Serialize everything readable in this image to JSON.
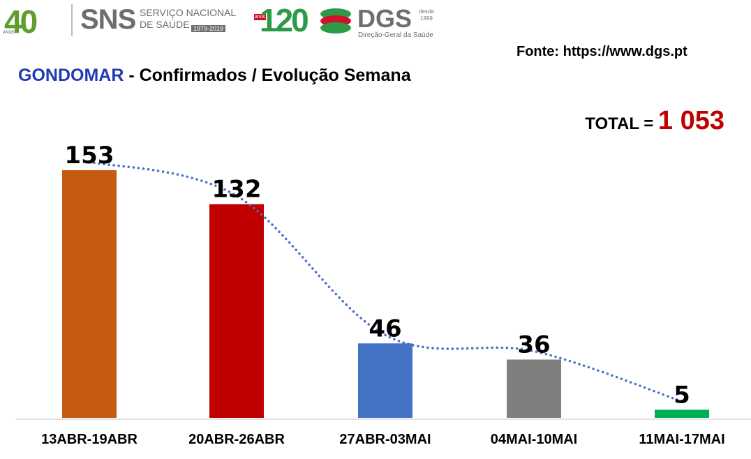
{
  "header": {
    "logo_40": "40",
    "logo_40_anos": "ANOS",
    "sns": "SNS",
    "sns_line1": "SERVIÇO NACIONAL",
    "sns_line2": "DE SAÚDE",
    "sns_years": "1979-2019",
    "logo_120": "120",
    "logo_120_anos": "anos",
    "dgs": "DGS",
    "dgs_desde": "desde",
    "dgs_year": "1899",
    "dgs_sub": "Direção-Geral da Saúde"
  },
  "source": "Fonte: https://www.dgs.pt",
  "total": {
    "label": "TOTAL = ",
    "value": "1 053"
  },
  "colors": {
    "place": "#1f3bb3",
    "total": "#c00000",
    "trend": "#4472c4"
  },
  "chart_data": {
    "type": "bar",
    "title_place": "GONDOMAR",
    "title_rest": " - Confirmados / Evolução Semana",
    "categories": [
      "13ABR-19ABR",
      "20ABR-26ABR",
      "27ABR-03MAI",
      "04MAI-10MAI",
      "11MAI-17MAI"
    ],
    "values": [
      153,
      132,
      46,
      36,
      5
    ],
    "bar_colors": [
      "#c55a11",
      "#c00000",
      "#4472c4",
      "#7f7f7f",
      "#00b050"
    ],
    "trendline": {
      "style": "dotted",
      "color": "#4472c4"
    },
    "ylim": [
      0,
      153
    ],
    "grid": false,
    "legend": "none"
  }
}
